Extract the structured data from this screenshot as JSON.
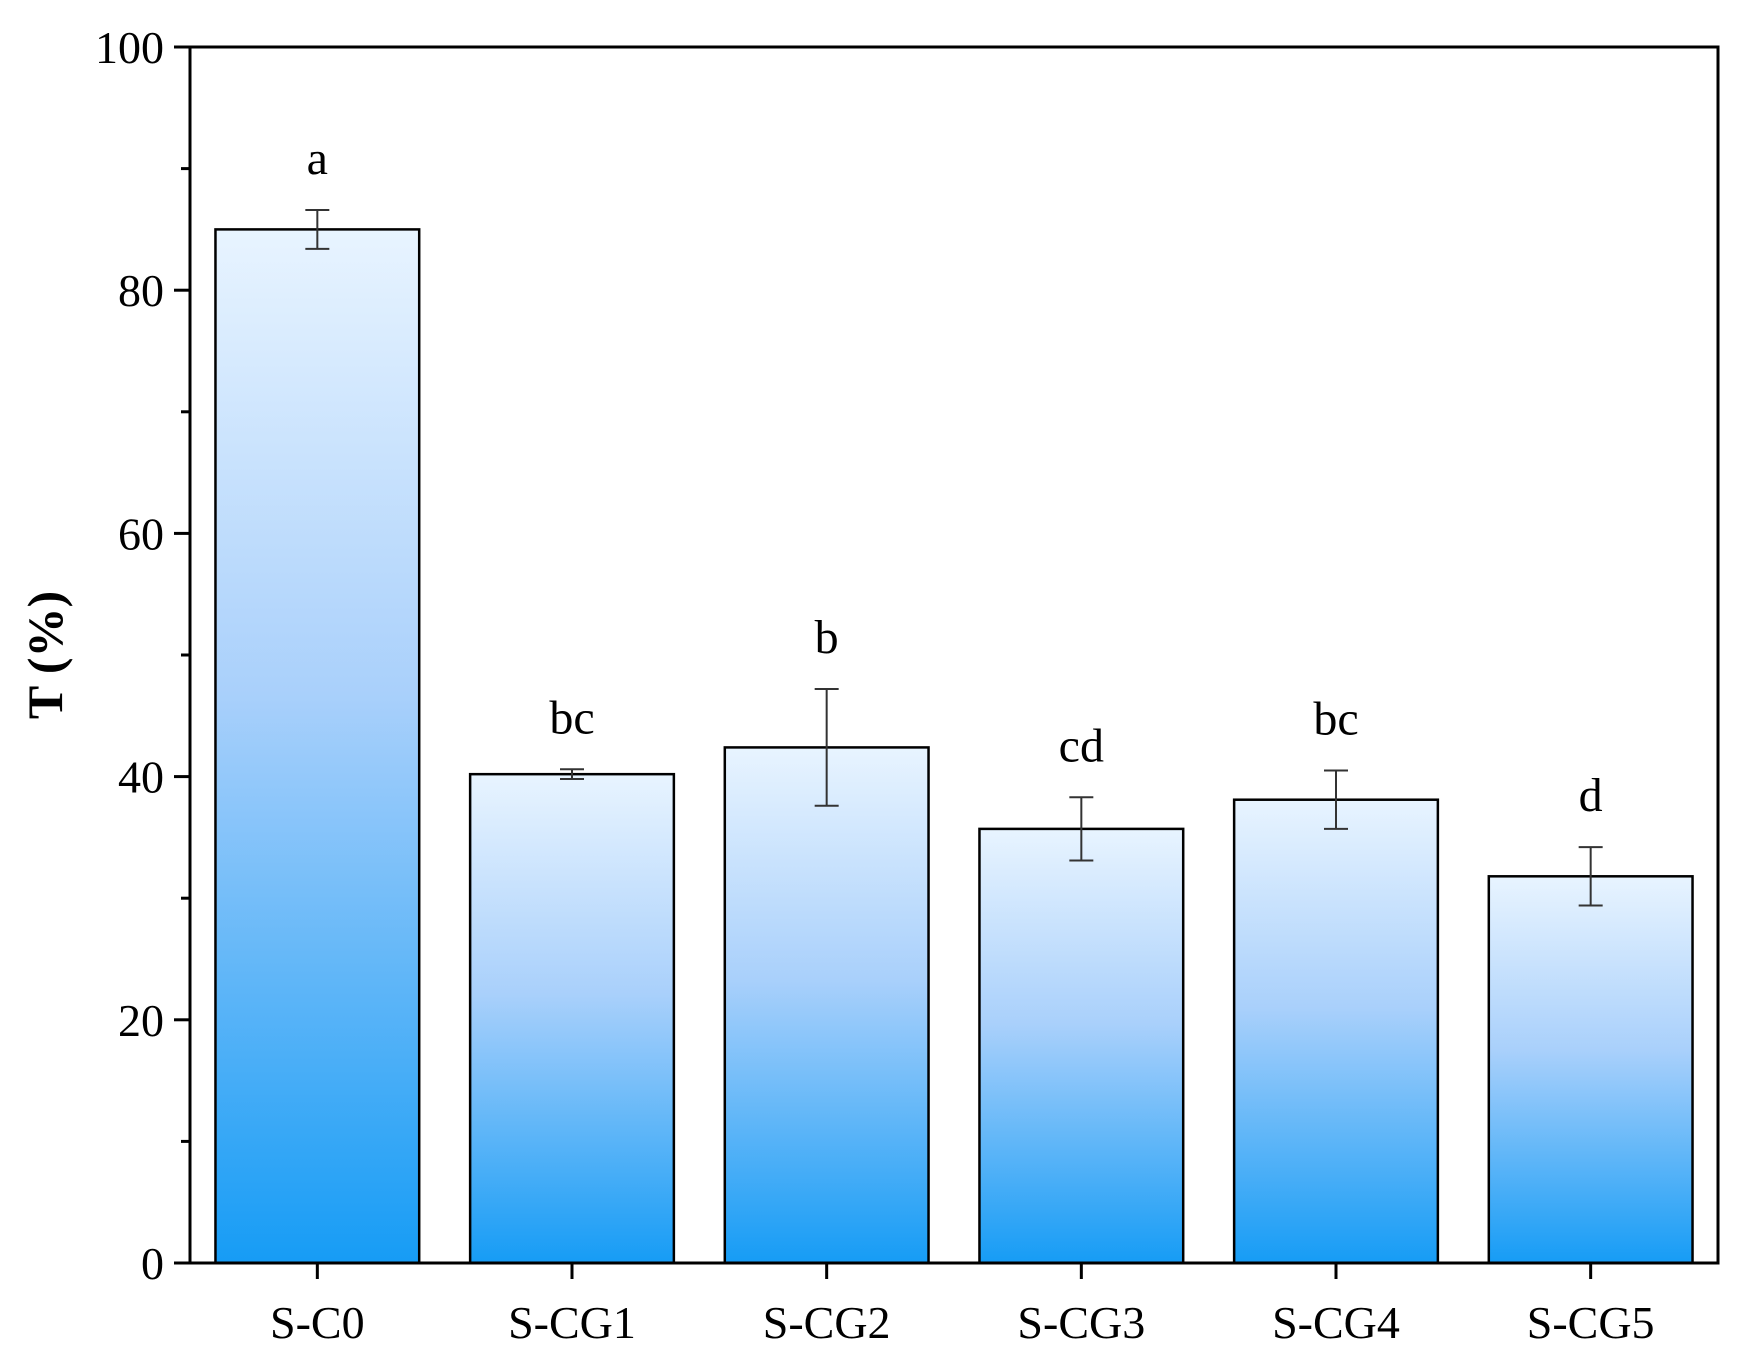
{
  "chart_data": {
    "type": "bar",
    "title": "",
    "xlabel": "",
    "ylabel": "T (%)",
    "categories": [
      "S-C0",
      "S-CG1",
      "S-CG2",
      "S-CG3",
      "S-CG4",
      "S-CG5"
    ],
    "values": [
      85.0,
      40.2,
      42.4,
      35.7,
      38.1,
      31.8
    ],
    "errors": [
      1.6,
      0.4,
      4.8,
      2.6,
      2.4,
      2.4
    ],
    "significance_letters": [
      "a",
      "bc",
      "b",
      "cd",
      "bc",
      "d"
    ],
    "ylim": [
      0,
      100
    ],
    "yticks": [
      0,
      20,
      40,
      60,
      80,
      100
    ],
    "yticks_minor": [
      10,
      30,
      50,
      70,
      90
    ],
    "grid": false,
    "legend": "none",
    "colors": {
      "bar_top": "#e8f4ff",
      "bar_mid": "#a9d0fb",
      "bar_bottom": "#169cf5",
      "bar_stroke": "#000000",
      "error_bar": "#333333",
      "axis": "#000000"
    }
  }
}
